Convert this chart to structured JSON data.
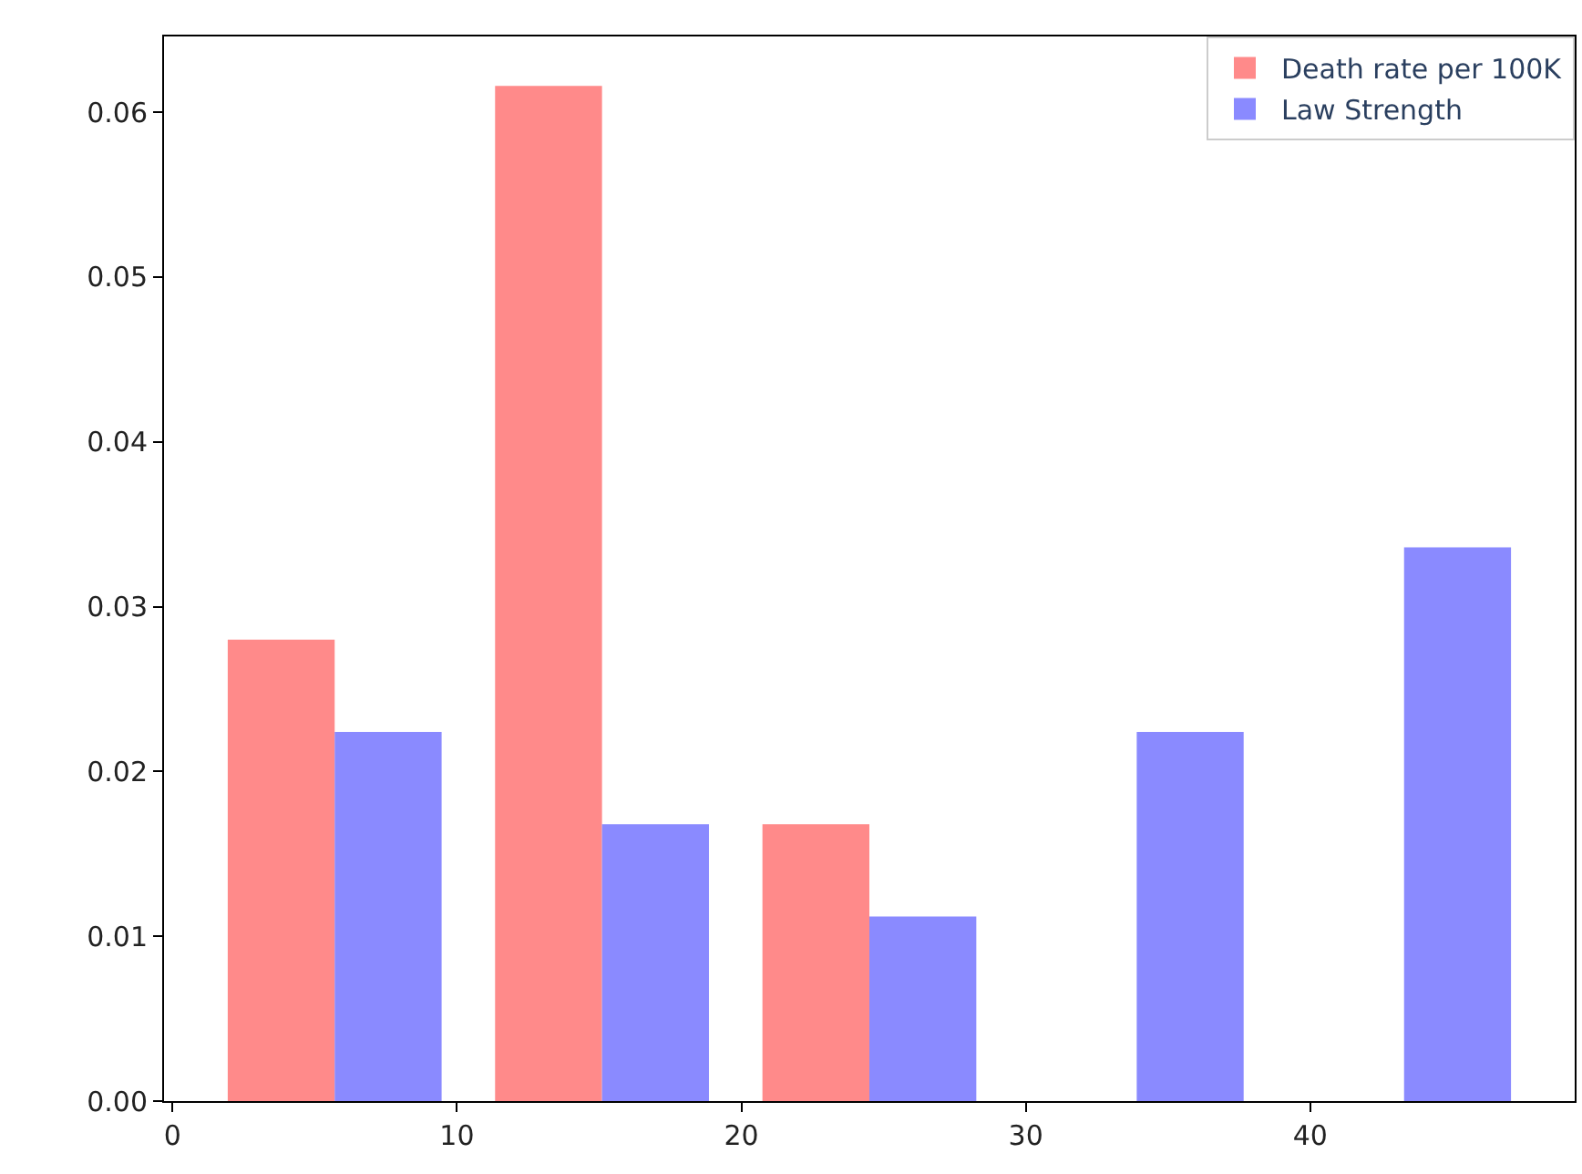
{
  "chart_data": {
    "type": "histogram",
    "bins": [
      1,
      10.4,
      19.8,
      29.2,
      38.6,
      48
    ],
    "series": [
      {
        "name": "Death rate per 100K",
        "color": "#ff8a8a",
        "values": [
          0.028,
          0.0616,
          0.0168,
          0,
          0
        ]
      },
      {
        "name": "Law Strength",
        "color": "#8a8aff",
        "values": [
          0.0224,
          0.0168,
          0.0112,
          0.0224,
          0.0336
        ]
      }
    ],
    "xlim": [
      -0.3,
      49.3
    ],
    "xticks": [
      0,
      10,
      20,
      30,
      40
    ],
    "ylim": [
      0,
      0.0646
    ],
    "yticks": [
      {
        "value": 0,
        "label": "0.00"
      },
      {
        "value": 0.01,
        "label": "0.01"
      },
      {
        "value": 0.02,
        "label": "0.02"
      },
      {
        "value": 0.03,
        "label": "0.03"
      },
      {
        "value": 0.04,
        "label": "0.04"
      },
      {
        "value": 0.05,
        "label": "0.05"
      },
      {
        "value": 0.06,
        "label": "0.06"
      }
    ],
    "legend": "top right"
  }
}
